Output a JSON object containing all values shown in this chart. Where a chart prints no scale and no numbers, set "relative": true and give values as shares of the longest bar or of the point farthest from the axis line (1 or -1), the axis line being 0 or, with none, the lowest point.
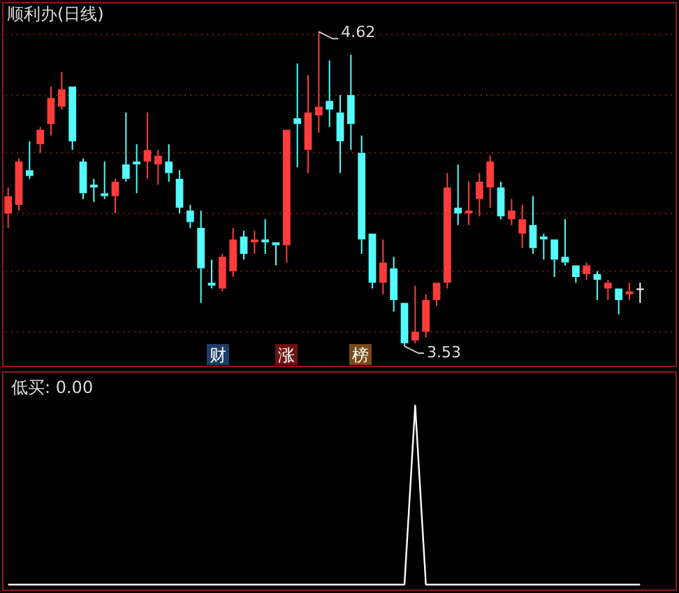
{
  "chart_data": [
    {
      "type": "candlestick",
      "title": "顺利办(日线)",
      "categories": [
        null,
        null,
        null,
        null,
        null,
        null,
        null,
        null,
        null,
        null,
        null,
        null,
        null,
        null,
        null,
        null,
        null,
        null,
        null,
        null,
        null,
        null,
        null,
        null,
        null,
        null,
        null,
        null,
        null,
        null,
        null,
        null,
        null,
        null,
        null,
        null,
        null,
        null,
        null,
        null,
        null,
        null,
        null,
        null,
        null,
        null,
        null,
        null,
        null,
        null,
        null,
        null,
        null,
        null,
        null,
        null,
        null,
        null,
        null,
        null
      ],
      "ohlc": [
        [
          3.99,
          4.08,
          3.94,
          4.05
        ],
        [
          4.02,
          4.18,
          4.0,
          4.17
        ],
        [
          4.14,
          4.24,
          4.11,
          4.12
        ],
        [
          4.23,
          4.29,
          4.2,
          4.28
        ],
        [
          4.3,
          4.43,
          4.26,
          4.39
        ],
        [
          4.36,
          4.48,
          4.35,
          4.42
        ],
        [
          4.43,
          4.43,
          4.21,
          4.24
        ],
        [
          4.17,
          4.18,
          4.04,
          4.06
        ],
        [
          4.09,
          4.11,
          4.03,
          4.08
        ],
        [
          4.06,
          4.17,
          4.04,
          4.05
        ],
        [
          4.05,
          4.11,
          3.99,
          4.1
        ],
        [
          4.16,
          4.34,
          4.1,
          4.11
        ],
        [
          4.17,
          4.23,
          4.06,
          4.16
        ],
        [
          4.17,
          4.34,
          4.11,
          4.21
        ],
        [
          4.16,
          4.21,
          4.09,
          4.19
        ],
        [
          4.17,
          4.23,
          4.1,
          4.13
        ],
        [
          4.11,
          4.14,
          3.99,
          4.01
        ],
        [
          4.0,
          4.02,
          3.94,
          3.96
        ],
        [
          3.94,
          4.0,
          3.68,
          3.8
        ],
        [
          3.75,
          3.83,
          3.73,
          3.74
        ],
        [
          3.73,
          3.85,
          3.72,
          3.84
        ],
        [
          3.79,
          3.94,
          3.77,
          3.9
        ],
        [
          3.91,
          3.93,
          3.83,
          3.85
        ],
        [
          3.89,
          3.93,
          3.85,
          3.9
        ],
        [
          3.9,
          3.97,
          3.85,
          3.89
        ],
        [
          3.89,
          3.89,
          3.81,
          3.88
        ],
        [
          3.88,
          4.28,
          3.82,
          4.28
        ],
        [
          4.32,
          4.51,
          4.15,
          4.3
        ],
        [
          4.21,
          4.47,
          4.13,
          4.34
        ],
        [
          4.33,
          4.62,
          4.27,
          4.36
        ],
        [
          4.38,
          4.52,
          4.29,
          4.35
        ],
        [
          4.34,
          4.4,
          4.13,
          4.24
        ],
        [
          4.4,
          4.54,
          4.21,
          4.3
        ],
        [
          4.2,
          4.26,
          3.85,
          3.9
        ],
        [
          3.92,
          3.92,
          3.73,
          3.75
        ],
        [
          3.75,
          3.9,
          3.71,
          3.82
        ],
        [
          3.8,
          3.84,
          3.65,
          3.69
        ],
        [
          3.68,
          3.68,
          3.53,
          3.54
        ],
        [
          3.55,
          3.74,
          3.54,
          3.58
        ],
        [
          3.58,
          3.71,
          3.56,
          3.69
        ],
        [
          3.69,
          3.75,
          3.67,
          3.75
        ],
        [
          3.75,
          4.13,
          3.73,
          4.08
        ],
        [
          4.01,
          4.16,
          3.95,
          3.99
        ],
        [
          3.99,
          4.1,
          3.95,
          4.0
        ],
        [
          4.04,
          4.13,
          3.98,
          4.1
        ],
        [
          4.08,
          4.19,
          4.01,
          4.17
        ],
        [
          4.08,
          4.1,
          3.97,
          3.98
        ],
        [
          3.97,
          4.04,
          3.95,
          4.0
        ],
        [
          3.92,
          4.02,
          3.87,
          3.97
        ],
        [
          3.95,
          4.05,
          3.85,
          3.87
        ],
        [
          3.91,
          3.92,
          3.83,
          3.9
        ],
        [
          3.9,
          3.9,
          3.77,
          3.83
        ],
        [
          3.84,
          3.97,
          3.81,
          3.82
        ],
        [
          3.81,
          3.81,
          3.75,
          3.77
        ],
        [
          3.78,
          3.82,
          3.76,
          3.81
        ],
        [
          3.78,
          3.79,
          3.69,
          3.76
        ],
        [
          3.73,
          3.76,
          3.69,
          3.75
        ],
        [
          3.73,
          3.73,
          3.64,
          3.69
        ],
        [
          3.71,
          3.75,
          3.69,
          3.72
        ],
        [
          3.73,
          3.75,
          3.68,
          3.73
        ]
      ],
      "colors": [
        "#ff3c3c",
        "#ff3c3c",
        "#54fcfc",
        "#ff3c3c",
        "#ff3c3c",
        "#ff3c3c",
        "#54fcfc",
        "#54fcfc",
        "#54fcfc",
        "#54fcfc",
        "#ff3c3c",
        "#54fcfc",
        "#54fcfc",
        "#ff3c3c",
        "#ff3c3c",
        "#54fcfc",
        "#54fcfc",
        "#54fcfc",
        "#54fcfc",
        "#54fcfc",
        "#ff3c3c",
        "#ff3c3c",
        "#54fcfc",
        "#ff3c3c",
        "#54fcfc",
        "#54fcfc",
        "#ff3c3c",
        "#54fcfc",
        "#ff3c3c",
        "#ff3c3c",
        "#54fcfc",
        "#54fcfc",
        "#54fcfc",
        "#54fcfc",
        "#54fcfc",
        "#ff3c3c",
        "#54fcfc",
        "#54fcfc",
        "#ff3c3c",
        "#ff3c3c",
        "#ff3c3c",
        "#ff3c3c",
        "#54fcfc",
        "#ff3c3c",
        "#ff3c3c",
        "#ff3c3c",
        "#54fcfc",
        "#ff3c3c",
        "#ff3c3c",
        "#54fcfc",
        "#54fcfc",
        "#54fcfc",
        "#54fcfc",
        "#54fcfc",
        "#ff3c3c",
        "#54fcfc",
        "#ff3c3c",
        "#54fcfc",
        "#ff3c3c",
        "#ffffff"
      ],
      "ylim": [
        3.46,
        4.72
      ],
      "yticks": [
        {
          "value": 4.61,
          "label": null
        },
        {
          "value": 4.4,
          "label": null
        },
        {
          "value": 4.2,
          "label": null
        },
        {
          "value": 3.99,
          "label": null
        },
        {
          "value": 3.79,
          "label": null
        },
        {
          "value": 3.58,
          "label": null
        }
      ],
      "grid": "y",
      "tick_labels": false,
      "annotations": [
        "4.62",
        "3.53",
        "财",
        "涨",
        "榜"
      ]
    },
    {
      "type": "line",
      "title": "低买: 0.00",
      "relative": true,
      "categories": [
        null,
        null,
        null,
        null,
        null,
        null,
        null,
        null,
        null,
        null,
        null,
        null,
        null,
        null,
        null,
        null,
        null,
        null,
        null,
        null,
        null,
        null,
        null,
        null,
        null,
        null,
        null,
        null,
        null,
        null,
        null,
        null,
        null,
        null,
        null,
        null,
        null,
        null,
        null,
        null,
        null,
        null,
        null,
        null,
        null,
        null,
        null,
        null,
        null,
        null,
        null,
        null,
        null,
        null,
        null,
        null,
        null,
        null,
        null,
        null
      ],
      "series": [
        {
          "color": "#ffffff",
          "values": [
            0,
            0,
            0,
            0,
            0,
            0,
            0,
            0,
            0,
            0,
            0,
            0,
            0,
            0,
            0,
            0,
            0,
            0,
            0,
            0,
            0,
            0,
            0,
            0,
            0,
            0,
            0,
            0,
            0,
            0,
            0,
            0,
            0,
            0,
            0,
            0,
            0,
            0,
            1,
            0,
            0,
            0,
            0,
            0,
            0,
            0,
            0,
            0,
            0,
            0,
            0,
            0,
            0,
            0,
            0,
            0,
            0,
            0,
            0,
            0
          ]
        }
      ]
    }
  ]
}
